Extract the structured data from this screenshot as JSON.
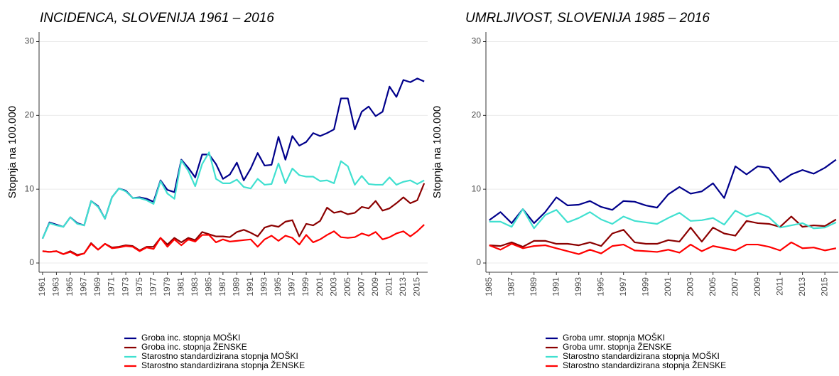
{
  "chart_data": [
    {
      "type": "line",
      "title": "INCIDENCA, SLOVENIJA 1961 – 2016",
      "ylabel": "Stopnja na 100.000",
      "x": [
        1961,
        1962,
        1963,
        1964,
        1965,
        1966,
        1967,
        1968,
        1969,
        1970,
        1971,
        1972,
        1973,
        1974,
        1975,
        1976,
        1977,
        1978,
        1979,
        1980,
        1981,
        1982,
        1983,
        1984,
        1985,
        1986,
        1987,
        1988,
        1989,
        1990,
        1991,
        1992,
        1993,
        1994,
        1995,
        1996,
        1997,
        1998,
        1999,
        2000,
        2001,
        2002,
        2003,
        2004,
        2005,
        2006,
        2007,
        2008,
        2009,
        2010,
        2011,
        2012,
        2013,
        2014,
        2015,
        2016
      ],
      "xlim": [
        1960.5,
        2016.5
      ],
      "xticks": [
        1961,
        1963,
        1965,
        1967,
        1969,
        1971,
        1973,
        1975,
        1977,
        1979,
        1981,
        1983,
        1985,
        1987,
        1989,
        1991,
        1993,
        1995,
        1997,
        1999,
        2001,
        2003,
        2005,
        2007,
        2009,
        2011,
        2013,
        2015
      ],
      "ylim": [
        -1.25,
        31.3
      ],
      "yticks": [
        0,
        10,
        20,
        30
      ],
      "grid": true,
      "series": [
        {
          "name": "Groba inc. stopnja MOŠKI",
          "color": "#00008b",
          "values": [
            3.3,
            5.5,
            5.2,
            4.9,
            6.2,
            5.4,
            5.1,
            8.4,
            7.7,
            6.0,
            8.9,
            10.1,
            9.8,
            8.8,
            8.9,
            8.7,
            8.3,
            11.2,
            9.9,
            9.6,
            14.0,
            12.9,
            11.6,
            14.7,
            14.7,
            13.4,
            11.4,
            12.0,
            13.6,
            11.2,
            12.8,
            14.9,
            13.2,
            13.3,
            17.1,
            14.0,
            17.2,
            15.9,
            16.4,
            17.6,
            17.2,
            17.6,
            18.1,
            22.3,
            22.3,
            18.1,
            20.5,
            21.2,
            19.9,
            20.5,
            23.9,
            22.5,
            24.8,
            24.5,
            25.0,
            24.6
          ]
        },
        {
          "name": "Groba inc. stopnja ŽENSKE",
          "color": "#8b0000",
          "values": [
            1.6,
            1.5,
            1.6,
            1.2,
            1.6,
            1.1,
            1.3,
            2.7,
            1.8,
            2.6,
            2.1,
            2.2,
            2.4,
            2.3,
            1.7,
            2.2,
            2.2,
            3.4,
            2.5,
            3.4,
            2.8,
            3.4,
            3.1,
            4.2,
            3.9,
            3.6,
            3.6,
            3.5,
            4.2,
            4.5,
            4.1,
            3.6,
            4.8,
            5.1,
            4.9,
            5.6,
            5.8,
            3.6,
            5.3,
            5.1,
            5.7,
            7.5,
            6.8,
            7.0,
            6.6,
            6.8,
            7.6,
            7.4,
            8.4,
            7.1,
            7.4,
            8.1,
            8.9,
            8.1,
            8.5,
            10.8
          ]
        },
        {
          "name": "Starostno standardizirana stopnja MOŠKI",
          "color": "#40e0d0",
          "values": [
            3.3,
            5.4,
            5.1,
            4.9,
            6.2,
            5.3,
            5.1,
            8.4,
            7.6,
            6.0,
            8.9,
            10.1,
            9.7,
            8.8,
            8.8,
            8.5,
            8.0,
            11.1,
            9.4,
            8.7,
            13.9,
            12.5,
            10.4,
            13.4,
            15.0,
            11.4,
            10.8,
            10.8,
            11.3,
            10.3,
            10.1,
            11.4,
            10.6,
            10.7,
            13.5,
            10.8,
            12.8,
            11.9,
            11.7,
            11.7,
            11.1,
            11.2,
            10.8,
            13.8,
            13.1,
            10.6,
            11.8,
            10.7,
            10.6,
            10.6,
            11.6,
            10.6,
            11.0,
            11.2,
            10.7,
            11.2
          ]
        },
        {
          "name": "Starostno standardizirana stopnja ŽENSKE",
          "color": "#ff0000",
          "values": [
            1.6,
            1.5,
            1.6,
            1.2,
            1.5,
            1.0,
            1.3,
            2.6,
            1.8,
            2.6,
            2.0,
            2.1,
            2.3,
            2.2,
            1.6,
            2.1,
            1.9,
            3.4,
            2.2,
            3.2,
            2.4,
            3.2,
            2.9,
            3.8,
            3.8,
            2.8,
            3.2,
            2.9,
            3.0,
            3.1,
            3.2,
            2.2,
            3.2,
            3.7,
            3.0,
            3.7,
            3.4,
            2.5,
            3.8,
            2.8,
            3.2,
            3.8,
            4.3,
            3.5,
            3.4,
            3.5,
            4.0,
            3.7,
            4.2,
            3.2,
            3.5,
            4.0,
            4.3,
            3.6,
            4.3,
            5.2
          ]
        }
      ]
    },
    {
      "type": "line",
      "title": "UMRLJIVOST, SLOVENIJA 1985 – 2016",
      "ylabel": "Stopnja na 100.000",
      "x": [
        1985,
        1986,
        1987,
        1988,
        1989,
        1990,
        1991,
        1992,
        1993,
        1994,
        1995,
        1996,
        1997,
        1998,
        1999,
        2000,
        2001,
        2002,
        2003,
        2004,
        2005,
        2006,
        2007,
        2008,
        2009,
        2010,
        2011,
        2012,
        2013,
        2014,
        2015,
        2016
      ],
      "xlim": [
        1984.7,
        2016.2
      ],
      "xticks": [
        1985,
        1987,
        1989,
        1991,
        1993,
        1995,
        1997,
        1999,
        2001,
        2003,
        2005,
        2007,
        2009,
        2011,
        2013,
        2015
      ],
      "ylim": [
        -1.25,
        31.3
      ],
      "yticks": [
        0,
        10,
        20,
        30
      ],
      "grid": true,
      "series": [
        {
          "name": "Groba umr. stopnja MOŠKI",
          "color": "#00008b",
          "values": [
            5.8,
            6.9,
            5.4,
            7.3,
            5.4,
            6.9,
            8.9,
            7.8,
            7.9,
            8.4,
            7.6,
            7.2,
            8.4,
            8.3,
            7.8,
            7.5,
            9.3,
            10.3,
            9.4,
            9.7,
            10.8,
            8.8,
            13.1,
            12.0,
            13.1,
            12.9,
            11.0,
            12.0,
            12.6,
            12.1,
            12.9,
            14.0
          ]
        },
        {
          "name": "Groba umr. stopnja ŽENSKE",
          "color": "#8b0000",
          "values": [
            2.4,
            2.3,
            2.8,
            2.2,
            3.0,
            3.0,
            2.6,
            2.6,
            2.4,
            2.8,
            2.3,
            4.0,
            4.5,
            2.8,
            2.6,
            2.6,
            3.1,
            2.9,
            4.8,
            2.9,
            4.8,
            4.0,
            3.7,
            5.7,
            5.4,
            5.3,
            4.9,
            6.3,
            4.9,
            5.1,
            5.0,
            5.9
          ]
        },
        {
          "name": "Starostno standardizirana stopnja MOŠKI",
          "color": "#40e0d0",
          "values": [
            5.6,
            5.6,
            4.9,
            7.3,
            4.7,
            6.5,
            7.2,
            5.5,
            6.1,
            6.9,
            5.9,
            5.3,
            6.3,
            5.7,
            5.5,
            5.3,
            6.1,
            6.8,
            5.7,
            5.8,
            6.1,
            5.2,
            7.1,
            6.3,
            6.8,
            6.2,
            4.8,
            5.1,
            5.4,
            4.7,
            4.8,
            5.5
          ]
        },
        {
          "name": "Starostno standardizirana stopnja ŽENSKE",
          "color": "#ff0000",
          "values": [
            2.4,
            1.8,
            2.6,
            2.0,
            2.3,
            2.4,
            2.0,
            1.6,
            1.2,
            1.8,
            1.3,
            2.3,
            2.5,
            1.7,
            1.6,
            1.5,
            1.8,
            1.4,
            2.5,
            1.6,
            2.3,
            2.0,
            1.7,
            2.5,
            2.5,
            2.2,
            1.7,
            2.8,
            2.0,
            2.1,
            1.7,
            2.0
          ]
        }
      ]
    }
  ]
}
